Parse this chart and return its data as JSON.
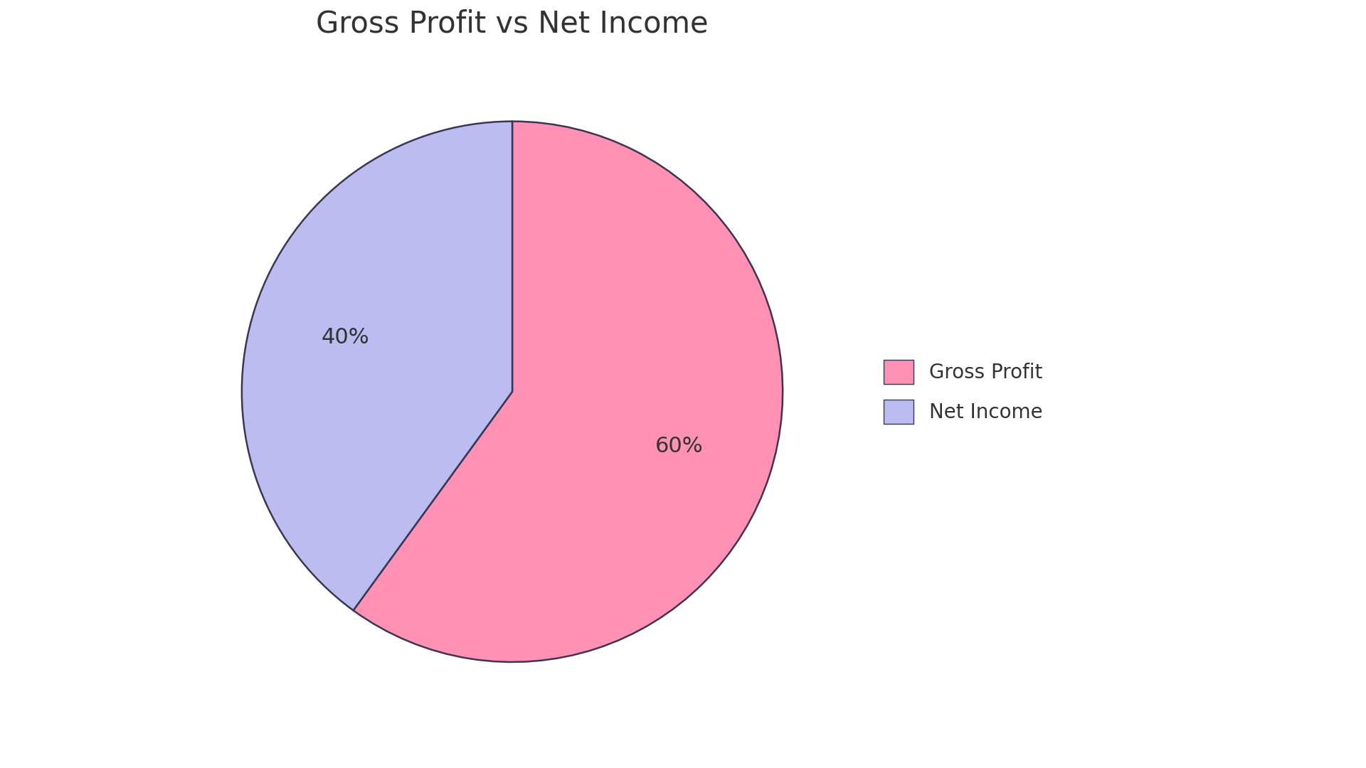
{
  "title": "Gross Profit vs Net Income",
  "labels": [
    "Gross Profit",
    "Net Income"
  ],
  "values": [
    60,
    40
  ],
  "colors": [
    "#FF91B4",
    "#BBBCF0"
  ],
  "text_color": "#333333",
  "edge_color": "#3d3555",
  "edge_width": 1.8,
  "title_fontsize": 30,
  "pct_fontsize": 22,
  "legend_fontsize": 20,
  "background_color": "#ffffff",
  "startangle": 90
}
